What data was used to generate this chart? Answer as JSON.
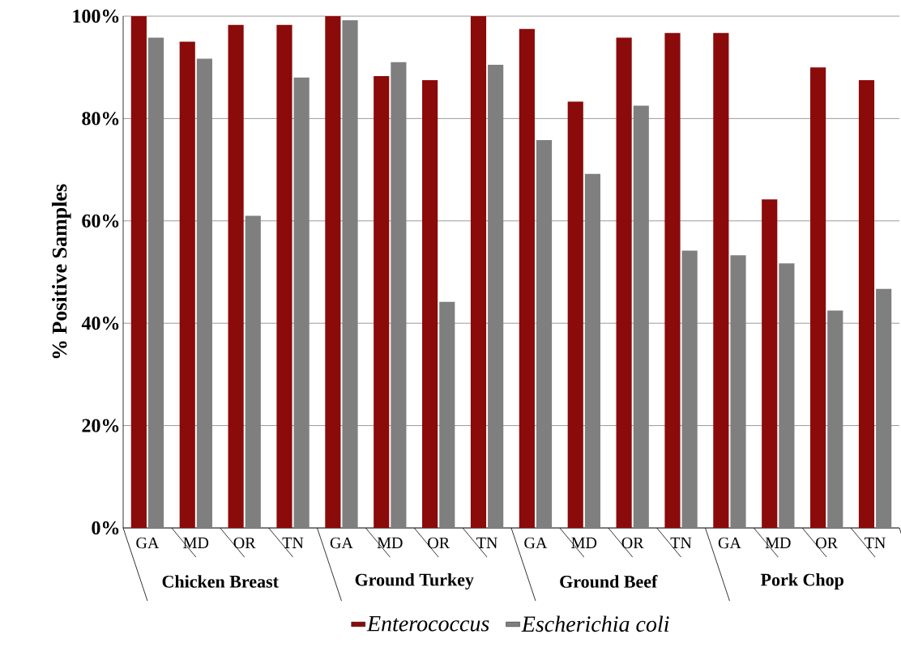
{
  "chart_data": {
    "type": "bar",
    "ylabel": "% Positive Samples",
    "categories": [
      "GA",
      "MD",
      "OR",
      "TN",
      "GA",
      "MD",
      "OR",
      "TN",
      "GA",
      "MD",
      "OR",
      "TN",
      "GA",
      "MD",
      "OR",
      "TN"
    ],
    "annotations": [
      "Chicken Breast",
      "Ground Turkey",
      "Ground Beef",
      "Pork Chop"
    ],
    "series": [
      {
        "name": "*Enterococcus*",
        "color": "#8b0a0a",
        "values": [
          100,
          95,
          98.3,
          98.3,
          100,
          88.3,
          87.5,
          100,
          97.5,
          83.3,
          95.8,
          96.7,
          96.7,
          64.2,
          90,
          87.5
        ]
      },
      {
        "name": "*Escherichia coli*",
        "color": "#7f7f7f",
        "values": [
          95.8,
          91.7,
          61,
          88,
          99.2,
          91,
          44.2,
          90.5,
          75.8,
          69.2,
          82.5,
          54.2,
          53.3,
          51.7,
          42.5,
          46.7
        ]
      }
    ],
    "ylim": [
      0,
      100
    ],
    "yticks": [
      {
        "value": 0,
        "label": "0%"
      },
      {
        "value": 20,
        "label": "20%"
      },
      {
        "value": 40,
        "label": "40%"
      },
      {
        "value": 60,
        "label": "60%"
      },
      {
        "value": 80,
        "label": "80%"
      },
      {
        "value": 100,
        "label": "100%"
      }
    ],
    "grid": "y",
    "legend": "bottom"
  }
}
